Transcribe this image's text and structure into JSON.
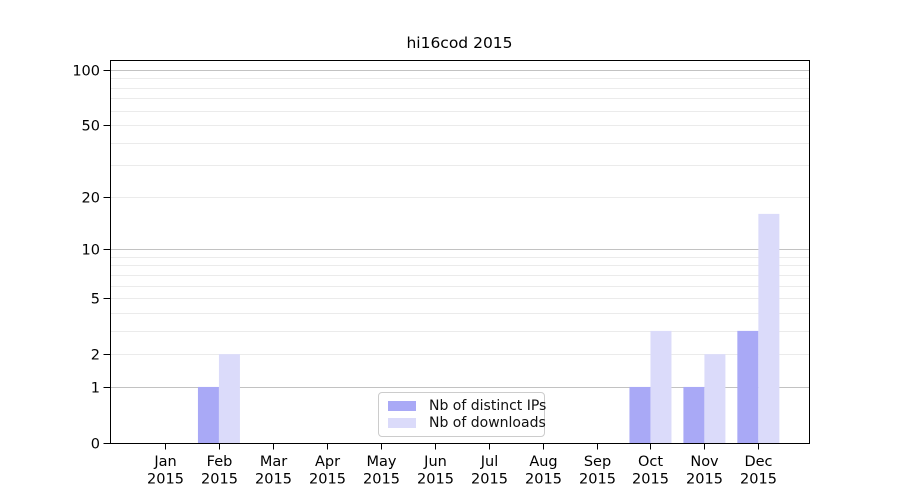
{
  "chart_data": {
    "type": "bar",
    "title": "hi16cod 2015",
    "x_categories": [
      {
        "month": "Jan",
        "year": "2015"
      },
      {
        "month": "Feb",
        "year": "2015"
      },
      {
        "month": "Mar",
        "year": "2015"
      },
      {
        "month": "Apr",
        "year": "2015"
      },
      {
        "month": "May",
        "year": "2015"
      },
      {
        "month": "Jun",
        "year": "2015"
      },
      {
        "month": "Jul",
        "year": "2015"
      },
      {
        "month": "Aug",
        "year": "2015"
      },
      {
        "month": "Sep",
        "year": "2015"
      },
      {
        "month": "Oct",
        "year": "2015"
      },
      {
        "month": "Nov",
        "year": "2015"
      },
      {
        "month": "Dec",
        "year": "2015"
      }
    ],
    "series": [
      {
        "name": "Nb of distinct IPs",
        "color": "#a9a9f6",
        "values": [
          0,
          1,
          0,
          0,
          0,
          0,
          0,
          0,
          0,
          1,
          1,
          3
        ]
      },
      {
        "name": "Nb of downloads",
        "color": "#dbdbfa",
        "values": [
          0,
          2,
          0,
          0,
          0,
          0,
          0,
          0,
          0,
          3,
          2,
          16
        ]
      }
    ],
    "y_axis": {
      "scale": "log1p",
      "tick_values": [
        0,
        1,
        2,
        5,
        10,
        20,
        50,
        100
      ],
      "major_gridlines": [
        1,
        10,
        100
      ],
      "minor_gridlines": [
        2,
        3,
        4,
        5,
        6,
        7,
        8,
        9,
        20,
        30,
        40,
        50,
        60,
        70,
        80,
        90
      ],
      "ylim": [
        0,
        113
      ]
    },
    "grid": "horizontal",
    "legend_position": "lower center"
  },
  "colors": {
    "background": "#ffffff",
    "axis": "#000000",
    "tick_label": "#000000",
    "major_grid": "#c2c2c2",
    "minor_grid": "#ebebeb",
    "legend_border": "#cccccc",
    "legend_background": "#ffffff"
  }
}
